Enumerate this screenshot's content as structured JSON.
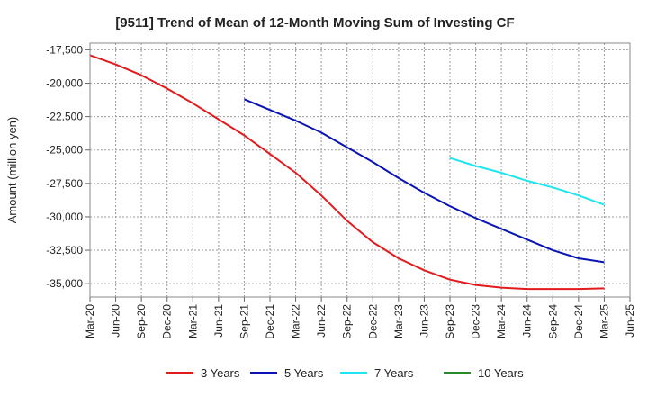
{
  "chart_data": {
    "type": "line",
    "title": "[9511]  Trend of Mean of 12-Month Moving Sum of Investing CF",
    "xlabel": "",
    "ylabel": "Amount (million yen)",
    "ylim": [
      -36000,
      -17000
    ],
    "yticks": [
      -17500,
      -20000,
      -22500,
      -25000,
      -27500,
      -30000,
      -32500,
      -35000
    ],
    "ytick_labels": [
      "-17,500",
      "-20,000",
      "-22,500",
      "-25,000",
      "-27,500",
      "-30,000",
      "-32,500",
      "-35,000"
    ],
    "x_categories": [
      "Mar-20",
      "Jun-20",
      "Sep-20",
      "Dec-20",
      "Mar-21",
      "Jun-21",
      "Sep-21",
      "Dec-21",
      "Mar-22",
      "Jun-22",
      "Sep-22",
      "Dec-22",
      "Mar-23",
      "Jun-23",
      "Sep-23",
      "Dec-23",
      "Mar-24",
      "Jun-24",
      "Sep-24",
      "Dec-24",
      "Mar-25",
      "Jun-25"
    ],
    "grid": true,
    "legend_position": "bottom",
    "series": [
      {
        "name": "3 Years",
        "color": "#e31a1c",
        "values": [
          -17900,
          -18600,
          -19400,
          -20400,
          -21500,
          -22700,
          -23900,
          -25300,
          -26700,
          -28400,
          -30300,
          -31900,
          -33100,
          -34000,
          -34700,
          -35100,
          -35300,
          -35400,
          -35400,
          -35400,
          -35350
        ]
      },
      {
        "name": "5 Years",
        "color": "#0a14b4",
        "start_index": 6,
        "values": [
          -21200,
          -22000,
          -22800,
          -23700,
          -24800,
          -25900,
          -27100,
          -28200,
          -29200,
          -30100,
          -30900,
          -31700,
          -32500,
          -33100,
          -33400
        ]
      },
      {
        "name": "7 Years",
        "color": "#1ee6f0",
        "start_index": 14,
        "values": [
          -25600,
          -26200,
          -26700,
          -27300,
          -27800,
          -28400,
          -29100
        ]
      },
      {
        "name": "10 Years",
        "color": "#2a8a2a",
        "start_index": 0,
        "values": []
      }
    ]
  }
}
